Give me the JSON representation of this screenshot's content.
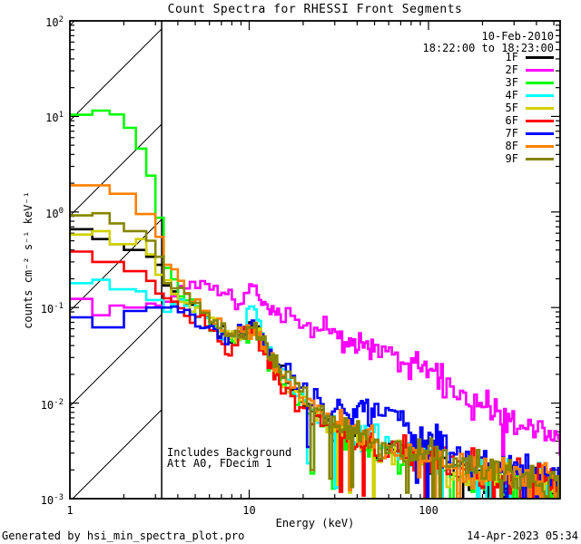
{
  "title": "Count Spectra for RHESSI Front Segments",
  "header": {
    "date": "10-Feb-2010",
    "time_range": "18:22:00 to 18:23:00"
  },
  "notes": {
    "background": "Includes Background",
    "attenuator": "Att A0, FDecim 1"
  },
  "footer": {
    "generated_by": "Generated by hsi_min_spectra_plot.pro",
    "timestamp": "14-Apr-2023 05:34"
  },
  "axes": {
    "xlabel": "Energy (keV)",
    "ylabel": "counts cm⁻² s⁻¹ keV⁻¹",
    "x_tick_values": [
      1,
      10,
      100
    ],
    "x_tick_labels": [
      "1",
      "10",
      "100"
    ],
    "y_tick_exponents": [
      2,
      1,
      0,
      -1,
      -2,
      -3
    ]
  },
  "chart_data": {
    "type": "line",
    "subtype": "histogram-step, log-log",
    "title": "Count Spectra for RHESSI Front Segments",
    "xlabel": "Energy (keV)",
    "ylabel": "counts cm⁻² s⁻¹ keV⁻¹",
    "xlim": [
      1,
      542
    ],
    "ylim": [
      0.001,
      100
    ],
    "xscale": "log",
    "yscale": "log",
    "grid": false,
    "legend_position": "top-right inside",
    "hatched_region": {
      "x_min": 1,
      "x_max": 3.25
    },
    "series": [
      {
        "name": "1F",
        "color": "#000000",
        "points": [
          [
            1,
            0.66
          ],
          [
            1.35,
            0.66
          ],
          [
            1.35,
            0.52
          ],
          [
            1.75,
            0.52
          ],
          [
            1.75,
            0.46
          ],
          [
            2.1,
            0.46
          ],
          [
            2.1,
            0.4
          ],
          [
            2.5,
            0.4
          ],
          [
            2.5,
            0.34
          ],
          [
            2.85,
            0.34
          ],
          [
            2.85,
            0.28
          ],
          [
            3.2,
            0.28
          ],
          [
            3.2,
            0.17
          ],
          [
            3.6,
            0.17
          ],
          [
            4,
            0.13
          ],
          [
            5,
            0.1
          ],
          [
            6.5,
            0.065
          ],
          [
            8,
            0.048
          ],
          [
            9.5,
            0.055
          ],
          [
            10.8,
            0.066
          ],
          [
            12,
            0.04
          ],
          [
            13.5,
            0.028
          ],
          [
            16,
            0.017
          ],
          [
            20,
            0.011
          ],
          [
            30,
            0.0055
          ],
          [
            50,
            0.0035
          ],
          [
            80,
            0.0028
          ],
          [
            150,
            0.002
          ],
          [
            300,
            0.0016
          ],
          [
            542,
            0.0013
          ]
        ]
      },
      {
        "name": "2F",
        "color": "#ff00ff",
        "points": [
          [
            1,
            0.123
          ],
          [
            1.3,
            0.123
          ],
          [
            1.3,
            0.083
          ],
          [
            1.75,
            0.083
          ],
          [
            1.75,
            0.105
          ],
          [
            2.15,
            0.105
          ],
          [
            2.15,
            0.1
          ],
          [
            2.6,
            0.1
          ],
          [
            2.6,
            0.11
          ],
          [
            3.0,
            0.11
          ],
          [
            3.0,
            0.105
          ],
          [
            3.4,
            0.105
          ],
          [
            3.4,
            0.115
          ],
          [
            3.8,
            0.115
          ],
          [
            4.2,
            0.14
          ],
          [
            4.6,
            0.165
          ],
          [
            5.2,
            0.175
          ],
          [
            6,
            0.165
          ],
          [
            7,
            0.155
          ],
          [
            7.8,
            0.13
          ],
          [
            8.5,
            0.095
          ],
          [
            9.3,
            0.12
          ],
          [
            10,
            0.14
          ],
          [
            10.7,
            0.185
          ],
          [
            11.5,
            0.13
          ],
          [
            12.5,
            0.1
          ],
          [
            14,
            0.088
          ],
          [
            17,
            0.073
          ],
          [
            20,
            0.065
          ],
          [
            25,
            0.055
          ],
          [
            32,
            0.05
          ],
          [
            40,
            0.042
          ],
          [
            55,
            0.034
          ],
          [
            70,
            0.03
          ],
          [
            90,
            0.027
          ],
          [
            110,
            0.022
          ],
          [
            140,
            0.016
          ],
          [
            180,
            0.011
          ],
          [
            230,
            0.008
          ],
          [
            300,
            0.006
          ],
          [
            400,
            0.005
          ],
          [
            542,
            0.004
          ]
        ]
      },
      {
        "name": "3F",
        "color": "#00ff00",
        "points": [
          [
            1,
            10.4
          ],
          [
            1.33,
            10.4
          ],
          [
            1.33,
            11.5
          ],
          [
            1.72,
            11.5
          ],
          [
            1.72,
            10.5
          ],
          [
            2.05,
            10.5
          ],
          [
            2.05,
            7.6
          ],
          [
            2.38,
            7.6
          ],
          [
            2.38,
            4.6
          ],
          [
            2.7,
            4.6
          ],
          [
            2.7,
            2.4
          ],
          [
            3.0,
            2.4
          ],
          [
            3.0,
            0.87
          ],
          [
            3.32,
            0.87
          ],
          [
            3.32,
            0.26
          ],
          [
            3.65,
            0.26
          ],
          [
            4,
            0.15
          ],
          [
            5,
            0.105
          ],
          [
            6.5,
            0.06
          ],
          [
            8,
            0.042
          ],
          [
            9.5,
            0.05
          ],
          [
            10.8,
            0.062
          ],
          [
            12,
            0.035
          ],
          [
            13.5,
            0.026
          ],
          [
            16,
            0.015
          ],
          [
            20,
            0.0095
          ],
          [
            30,
            0.005
          ],
          [
            50,
            0.0032
          ],
          [
            80,
            0.0026
          ],
          [
            150,
            0.0018
          ],
          [
            300,
            0.0014
          ],
          [
            542,
            0.0012
          ]
        ]
      },
      {
        "name": "4F",
        "color": "#00ffff",
        "points": [
          [
            1,
            0.18
          ],
          [
            1.3,
            0.18
          ],
          [
            1.3,
            0.195
          ],
          [
            1.62,
            0.195
          ],
          [
            1.62,
            0.155
          ],
          [
            2.2,
            0.155
          ],
          [
            2.2,
            0.148
          ],
          [
            2.8,
            0.148
          ],
          [
            2.8,
            0.12
          ],
          [
            3.2,
            0.12
          ],
          [
            3.2,
            0.09
          ],
          [
            3.6,
            0.09
          ],
          [
            4,
            0.13
          ],
          [
            4.8,
            0.105
          ],
          [
            6,
            0.075
          ],
          [
            7.5,
            0.05
          ],
          [
            8.8,
            0.045
          ],
          [
            9.8,
            0.09
          ],
          [
            10.5,
            0.1
          ],
          [
            11.3,
            0.07
          ],
          [
            12.5,
            0.038
          ],
          [
            14,
            0.026
          ],
          [
            16,
            0.017
          ],
          [
            20,
            0.011
          ],
          [
            30,
            0.006
          ],
          [
            50,
            0.004
          ],
          [
            80,
            0.003
          ],
          [
            150,
            0.0022
          ],
          [
            300,
            0.0017
          ],
          [
            542,
            0.0014
          ]
        ]
      },
      {
        "name": "5F",
        "color": "#d1d100",
        "points": [
          [
            1,
            0.58
          ],
          [
            1.33,
            0.58
          ],
          [
            1.33,
            0.63
          ],
          [
            1.75,
            0.63
          ],
          [
            1.75,
            0.46
          ],
          [
            2.2,
            0.46
          ],
          [
            2.2,
            0.52
          ],
          [
            2.55,
            0.52
          ],
          [
            2.55,
            0.36
          ],
          [
            3.0,
            0.36
          ],
          [
            3.0,
            0.22
          ],
          [
            3.4,
            0.22
          ],
          [
            3.8,
            0.13
          ],
          [
            4.5,
            0.105
          ],
          [
            5.5,
            0.085
          ],
          [
            7,
            0.055
          ],
          [
            8.5,
            0.045
          ],
          [
            10,
            0.055
          ],
          [
            11,
            0.06
          ],
          [
            12.5,
            0.032
          ],
          [
            14,
            0.024
          ],
          [
            16,
            0.016
          ],
          [
            20,
            0.01
          ],
          [
            30,
            0.0055
          ],
          [
            50,
            0.0035
          ],
          [
            80,
            0.0028
          ],
          [
            150,
            0.002
          ],
          [
            300,
            0.0016
          ],
          [
            542,
            0.0013
          ]
        ]
      },
      {
        "name": "6F",
        "color": "#ff0000",
        "points": [
          [
            1,
            0.385
          ],
          [
            1.35,
            0.385
          ],
          [
            1.35,
            0.3
          ],
          [
            1.95,
            0.3
          ],
          [
            1.95,
            0.24
          ],
          [
            2.5,
            0.24
          ],
          [
            2.5,
            0.19
          ],
          [
            2.95,
            0.19
          ],
          [
            2.95,
            0.14
          ],
          [
            3.35,
            0.14
          ],
          [
            3.8,
            0.1
          ],
          [
            4.5,
            0.085
          ],
          [
            5.5,
            0.07
          ],
          [
            6.5,
            0.052
          ],
          [
            7.5,
            0.036
          ],
          [
            8.5,
            0.042
          ],
          [
            9.5,
            0.05
          ],
          [
            10.5,
            0.062
          ],
          [
            11.5,
            0.042
          ],
          [
            12.5,
            0.03
          ],
          [
            14,
            0.02
          ],
          [
            16,
            0.014
          ],
          [
            20,
            0.009
          ],
          [
            30,
            0.005
          ],
          [
            50,
            0.0034
          ],
          [
            80,
            0.0027
          ],
          [
            150,
            0.002
          ],
          [
            300,
            0.0016
          ],
          [
            542,
            0.0013
          ]
        ]
      },
      {
        "name": "7F",
        "color": "#0000ff",
        "points": [
          [
            1,
            0.079
          ],
          [
            1.35,
            0.079
          ],
          [
            1.35,
            0.062
          ],
          [
            1.9,
            0.062
          ],
          [
            1.9,
            0.092
          ],
          [
            2.55,
            0.092
          ],
          [
            2.55,
            0.1
          ],
          [
            3.2,
            0.1
          ],
          [
            3.2,
            0.1
          ],
          [
            3.6,
            0.1
          ],
          [
            4,
            0.095
          ],
          [
            5,
            0.078
          ],
          [
            6.5,
            0.058
          ],
          [
            8,
            0.05
          ],
          [
            9.5,
            0.058
          ],
          [
            10.8,
            0.068
          ],
          [
            12,
            0.045
          ],
          [
            13.5,
            0.032
          ],
          [
            16,
            0.021
          ],
          [
            20,
            0.014
          ],
          [
            26,
            0.009
          ],
          [
            35,
            0.0085
          ],
          [
            45,
            0.009
          ],
          [
            55,
            0.0075
          ],
          [
            65,
            0.0065
          ],
          [
            80,
            0.0048
          ],
          [
            100,
            0.004
          ],
          [
            130,
            0.0032
          ],
          [
            180,
            0.0026
          ],
          [
            250,
            0.0021
          ],
          [
            350,
            0.0018
          ],
          [
            542,
            0.0015
          ]
        ]
      },
      {
        "name": "8F",
        "color": "#ff8000",
        "points": [
          [
            1,
            1.9
          ],
          [
            1.6,
            1.9
          ],
          [
            1.6,
            1.55
          ],
          [
            2.3,
            1.55
          ],
          [
            2.3,
            0.95
          ],
          [
            2.9,
            0.95
          ],
          [
            2.9,
            0.55
          ],
          [
            3.35,
            0.55
          ],
          [
            3.35,
            0.28
          ],
          [
            3.7,
            0.28
          ],
          [
            4.2,
            0.16
          ],
          [
            5,
            0.115
          ],
          [
            6.5,
            0.07
          ],
          [
            8,
            0.05
          ],
          [
            9.5,
            0.055
          ],
          [
            10.8,
            0.063
          ],
          [
            12,
            0.038
          ],
          [
            13.5,
            0.028
          ],
          [
            16,
            0.017
          ],
          [
            20,
            0.011
          ],
          [
            30,
            0.006
          ],
          [
            50,
            0.004
          ],
          [
            80,
            0.003
          ],
          [
            150,
            0.0022
          ],
          [
            300,
            0.0017
          ],
          [
            542,
            0.0014
          ]
        ]
      },
      {
        "name": "9F",
        "color": "#858500",
        "points": [
          [
            1,
            0.92
          ],
          [
            1.3,
            0.92
          ],
          [
            1.3,
            0.97
          ],
          [
            1.65,
            0.97
          ],
          [
            1.65,
            0.76
          ],
          [
            2.05,
            0.76
          ],
          [
            2.05,
            0.63
          ],
          [
            2.55,
            0.63
          ],
          [
            2.55,
            0.5
          ],
          [
            2.95,
            0.5
          ],
          [
            2.95,
            0.34
          ],
          [
            3.35,
            0.34
          ],
          [
            3.35,
            0.18
          ],
          [
            3.7,
            0.18
          ],
          [
            4.2,
            0.145
          ],
          [
            5,
            0.115
          ],
          [
            6.5,
            0.07
          ],
          [
            8,
            0.052
          ],
          [
            9.5,
            0.058
          ],
          [
            10.8,
            0.07
          ],
          [
            12,
            0.042
          ],
          [
            13.5,
            0.03
          ],
          [
            16,
            0.019
          ],
          [
            20,
            0.012
          ],
          [
            30,
            0.0062
          ],
          [
            50,
            0.0042
          ],
          [
            80,
            0.0032
          ],
          [
            150,
            0.0024
          ],
          [
            300,
            0.0018
          ],
          [
            542,
            0.0015
          ]
        ]
      }
    ]
  }
}
